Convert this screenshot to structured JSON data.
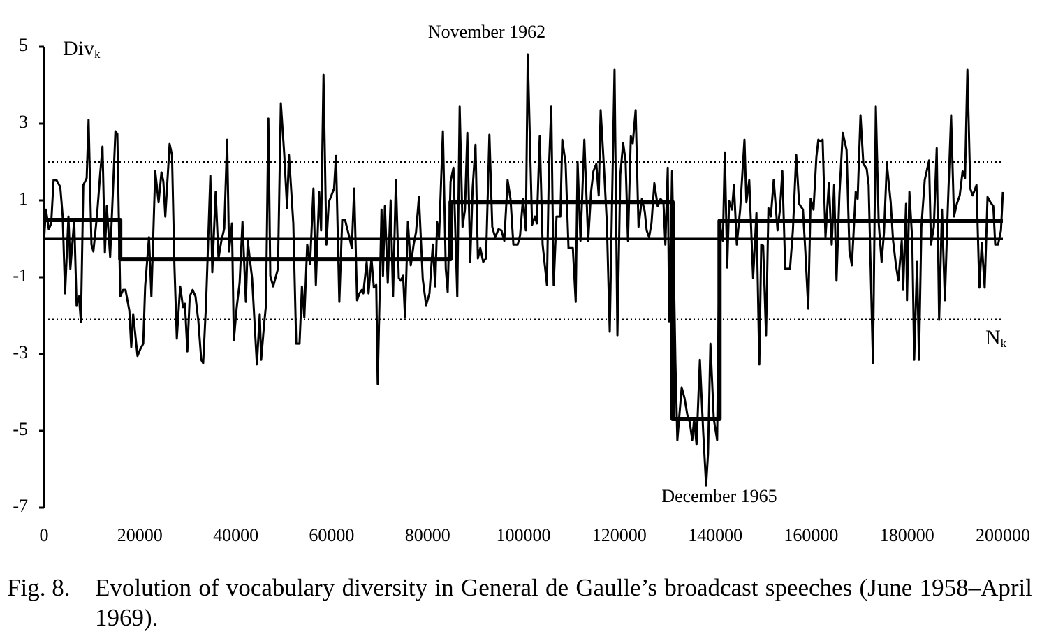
{
  "chart_data": {
    "type": "line",
    "ylabel": "Div",
    "ylabel_sub": "k",
    "xlabel": "N",
    "xlabel_sub": "k",
    "annotations": [
      {
        "text": "November 1962"
      },
      {
        "text": "December 1965"
      }
    ],
    "xlim": [
      0,
      200000
    ],
    "ylim": [
      -7,
      5
    ],
    "xticks": [
      0,
      20000,
      40000,
      60000,
      80000,
      100000,
      120000,
      140000,
      160000,
      180000,
      200000
    ],
    "yticks": [
      -7,
      -5,
      -3,
      -1,
      1,
      3,
      5
    ],
    "reference_lines": [
      2,
      -2.1
    ],
    "series": [
      {
        "color": "#000000",
        "x": [
          0,
          400,
          1000,
          1500,
          2000,
          2600,
          3400,
          3900,
          4400,
          5100,
          5500,
          6300,
          6800,
          7300,
          7700,
          8200,
          8900,
          9300,
          9900,
          10300,
          11100,
          11700,
          12200,
          12700,
          13100,
          13800,
          14900,
          15300,
          15900,
          16500,
          17000,
          17800,
          18200,
          18600,
          19500,
          20100,
          20700,
          21100,
          21900,
          22400,
          23200,
          23900,
          24500,
          24900,
          25300,
          26200,
          26700,
          27200,
          27700,
          28400,
          29000,
          29400,
          29900,
          30400,
          31000,
          31600,
          32200,
          32800,
          33200,
          33800,
          34700,
          35100,
          35800,
          36400,
          37000,
          37600,
          38200,
          38600,
          39200,
          39600,
          40200,
          40800,
          41400,
          42100,
          42500,
          43000,
          43400,
          44400,
          45000,
          45300,
          45900,
          46300,
          46800,
          47200,
          47800,
          48800,
          49400,
          50100,
          50700,
          51100,
          52000,
          52600,
          53300,
          53800,
          54300,
          54900,
          55500,
          56200,
          56700,
          57400,
          57800,
          58300,
          58900,
          59400,
          60500,
          60900,
          61600,
          62200,
          62800,
          63700,
          64200,
          64700,
          65300,
          65800,
          66300,
          66600,
          67300,
          67700,
          68300,
          68800,
          69300,
          69600,
          70400,
          70700,
          71100,
          71700,
          72300,
          72800,
          73400,
          74000,
          74400,
          74900,
          75300,
          75900,
          76500,
          77100,
          77600,
          78200,
          79000,
          79700,
          80400,
          81100,
          81600,
          82000,
          82400,
          83200,
          83800,
          84200,
          84800,
          85400,
          86200,
          86700,
          87300,
          87800,
          88300,
          88900,
          89400,
          90000,
          90500,
          91000,
          91600,
          92200,
          92900,
          93500,
          94100,
          94800,
          95400,
          96000,
          96700,
          97300,
          97900,
          98800,
          99300,
          99900,
          100500,
          100900,
          101800,
          102400,
          102800,
          103400,
          104000,
          104900,
          105300,
          105800,
          106300,
          106900,
          107700,
          108100,
          108800,
          109400,
          110000,
          110300,
          110900,
          111300,
          111900,
          112700,
          113500,
          114100,
          114600,
          115200,
          115700,
          116100,
          116800,
          117400,
          118000,
          118600,
          119000,
          119600,
          120200,
          120800,
          121300,
          121800,
          122400,
          122800,
          123400,
          124000,
          124700,
          125300,
          125700,
          126200,
          126700,
          127300,
          128000,
          128600,
          129200,
          129600,
          130100,
          130400,
          131000,
          131700,
          132100,
          133000,
          133600,
          134200,
          134700,
          135200,
          135600,
          136100,
          136800,
          137500,
          138100,
          138500,
          139000,
          139700,
          140400,
          140900,
          141600,
          142000,
          142500,
          142900,
          143500,
          143900,
          144500,
          145200,
          146100,
          146500,
          147100,
          147900,
          148600,
          149200,
          149600,
          150000,
          150600,
          151100,
          151600,
          152200,
          153000,
          153500,
          154000,
          154600,
          155600,
          156200,
          156900,
          157500,
          158300,
          158800,
          159400,
          159900,
          160500,
          161100,
          161500,
          162000,
          162400,
          163000,
          163700,
          164300,
          164800,
          165300,
          165900,
          166600,
          167400,
          168000,
          168500,
          169300,
          169700,
          170300,
          170900,
          171600,
          172000,
          172900,
          173500,
          174100,
          174700,
          175200,
          175800,
          176600,
          177100,
          177700,
          178200,
          178900,
          179200,
          179800,
          180000,
          180500,
          181100,
          181500,
          182100,
          182500,
          183000,
          183700,
          184600,
          185000,
          185600,
          186200,
          186700,
          187300,
          187900,
          188500,
          189200,
          189800,
          190400,
          191000,
          191600,
          192100,
          192600,
          193200,
          193700,
          194500,
          195100,
          195600,
          196200,
          196800,
          197400,
          198000,
          198400,
          199000,
          199600,
          200000
        ],
        "values": [
          -0.05,
          0.76,
          0.25,
          0.4,
          1.53,
          1.53,
          1.35,
          0.58,
          -1.42,
          0.58,
          -0.78,
          0.49,
          -1.73,
          -1.5,
          -2.16,
          1.4,
          1.58,
          3.1,
          -0.15,
          -0.33,
          0.67,
          1.67,
          2.4,
          -0.36,
          0.85,
          -0.47,
          2.8,
          2.73,
          -1.5,
          -1.33,
          -1.33,
          -1.87,
          -2.82,
          -1.96,
          -3.05,
          -2.87,
          -2.73,
          -1.24,
          0.04,
          -1.5,
          1.76,
          0.95,
          1.73,
          1.49,
          0.58,
          2.47,
          2.18,
          -0.69,
          -2.6,
          -1.24,
          -1.78,
          -1.69,
          -2.93,
          -1.5,
          -1.33,
          -1.5,
          -2.15,
          -3.15,
          -3.24,
          -1.69,
          1.64,
          -0.87,
          1.22,
          -0.51,
          -0.05,
          0.27,
          2.58,
          -0.33,
          0.4,
          -2.64,
          -1.78,
          -1.15,
          0.44,
          -1.64,
          -0.05,
          -0.6,
          -1.02,
          -3.27,
          -1.96,
          -3.15,
          -2.24,
          -1.73,
          3.13,
          -0.96,
          -1.24,
          -0.78,
          3.53,
          2.22,
          0.8,
          2.18,
          0.4,
          -2.73,
          -2.73,
          -1.24,
          -2.05,
          -0.15,
          -0.65,
          1.31,
          -1.2,
          1.22,
          0.22,
          4.27,
          -0.15,
          0.95,
          1.31,
          2.16,
          -1.64,
          0.49,
          0.49,
          0.04,
          -0.24,
          1.31,
          -1.6,
          -1.42,
          -1.33,
          -1.42,
          -0.6,
          -1.42,
          -0.51,
          -1.27,
          -1.2,
          -3.78,
          0.76,
          -0.96,
          0.85,
          -1.15,
          1.0,
          -1.5,
          1.53,
          -1.02,
          -1.09,
          -0.96,
          -2.05,
          0.44,
          -0.69,
          -0.15,
          0.18,
          1.09,
          -1.05,
          -1.73,
          -1.42,
          -0.15,
          -1.24,
          0.44,
          0.04,
          2.8,
          -0.78,
          -1.38,
          1.49,
          1.85,
          -1.5,
          3.44,
          0.31,
          0.76,
          2.76,
          -0.6,
          1.31,
          2.45,
          -0.51,
          -0.24,
          -0.6,
          -0.51,
          2.71,
          0.31,
          0.04,
          0.25,
          0.22,
          -0.05,
          1.53,
          1.04,
          -0.15,
          -0.15,
          0.09,
          1.04,
          0.22,
          4.8,
          0.36,
          0.58,
          0.4,
          2.67,
          -0.15,
          -1.2,
          1.76,
          3.44,
          -1.2,
          0.58,
          0.58,
          2.58,
          1.95,
          -0.24,
          -0.24,
          -0.24,
          -1.64,
          2.0,
          -0.05,
          2.58,
          -0.05,
          1.22,
          1.76,
          1.95,
          1.13,
          3.35,
          1.85,
          0.4,
          -2.42,
          1.76,
          4.4,
          -2.51,
          1.67,
          2.49,
          2.04,
          -0.05,
          2.67,
          2.49,
          3.35,
          0.31,
          1.04,
          0.71,
          0.22,
          0.04,
          0.4,
          1.45,
          0.85,
          1.04,
          0.95,
          -0.15,
          1.85,
          -2.15,
          1.76,
          -3.24,
          -5.24,
          -3.87,
          -4.15,
          -4.6,
          -4.78,
          -5.24,
          -4.69,
          -5.36,
          -3.15,
          -5.05,
          -6.42,
          -5.6,
          -2.73,
          -4.69,
          -5.24,
          0.4,
          -0.05,
          2.25,
          -0.75,
          0.98,
          0.76,
          1.4,
          -0.15,
          0.76,
          2.58,
          0.95,
          1.53,
          -1.02,
          0.67,
          -3.27,
          -0.15,
          -0.18,
          -2.51,
          0.8,
          0.58,
          1.53,
          0.22,
          0.76,
          1.76,
          -0.78,
          -0.78,
          0.22,
          2.18,
          0.91,
          0.76,
          -0.33,
          -1.82,
          1.04,
          0.76,
          2.13,
          2.58,
          2.53,
          2.58,
          0.04,
          1.45,
          -0.15,
          1.4,
          -1.09,
          1.13,
          2.76,
          2.31,
          -0.33,
          -0.69,
          1.22,
          1.04,
          3.22,
          1.95,
          1.82,
          1.4,
          -3.24,
          3.44,
          0.4,
          -0.6,
          0.16,
          1.95,
          0.95,
          -0.05,
          -0.69,
          -1.09,
          -0.05,
          -1.33,
          0.91,
          -1.6,
          1.22,
          -0.05,
          -3.15,
          -0.6,
          -3.15,
          0.31,
          1.53,
          2.04,
          -0.15,
          0.31,
          2.36,
          -2.11,
          0.76,
          -1.6,
          0.76,
          3.22,
          0.58,
          0.91,
          1.13,
          1.76,
          1.58,
          4.4,
          1.31,
          1.13,
          1.4,
          -1.27,
          -0.11,
          -1.27,
          1.09,
          0.95,
          0.85,
          -0.15,
          -0.15,
          0.22,
          1.22
        ]
      },
      {
        "color": "#000000",
        "x": [
          0,
          15900,
          15900,
          84800,
          84800,
          131100,
          131100,
          140900,
          140900,
          200000
        ],
        "values": [
          0.49,
          0.49,
          -0.53,
          -0.53,
          0.96,
          0.96,
          -4.69,
          -4.69,
          0.47,
          0.47
        ]
      }
    ],
    "caption_label": "Fig. 8.",
    "caption_text": "Evolution of vocabulary diversity in General de Gaulle’s broadcast speeches (June 1958–April 1969)."
  }
}
